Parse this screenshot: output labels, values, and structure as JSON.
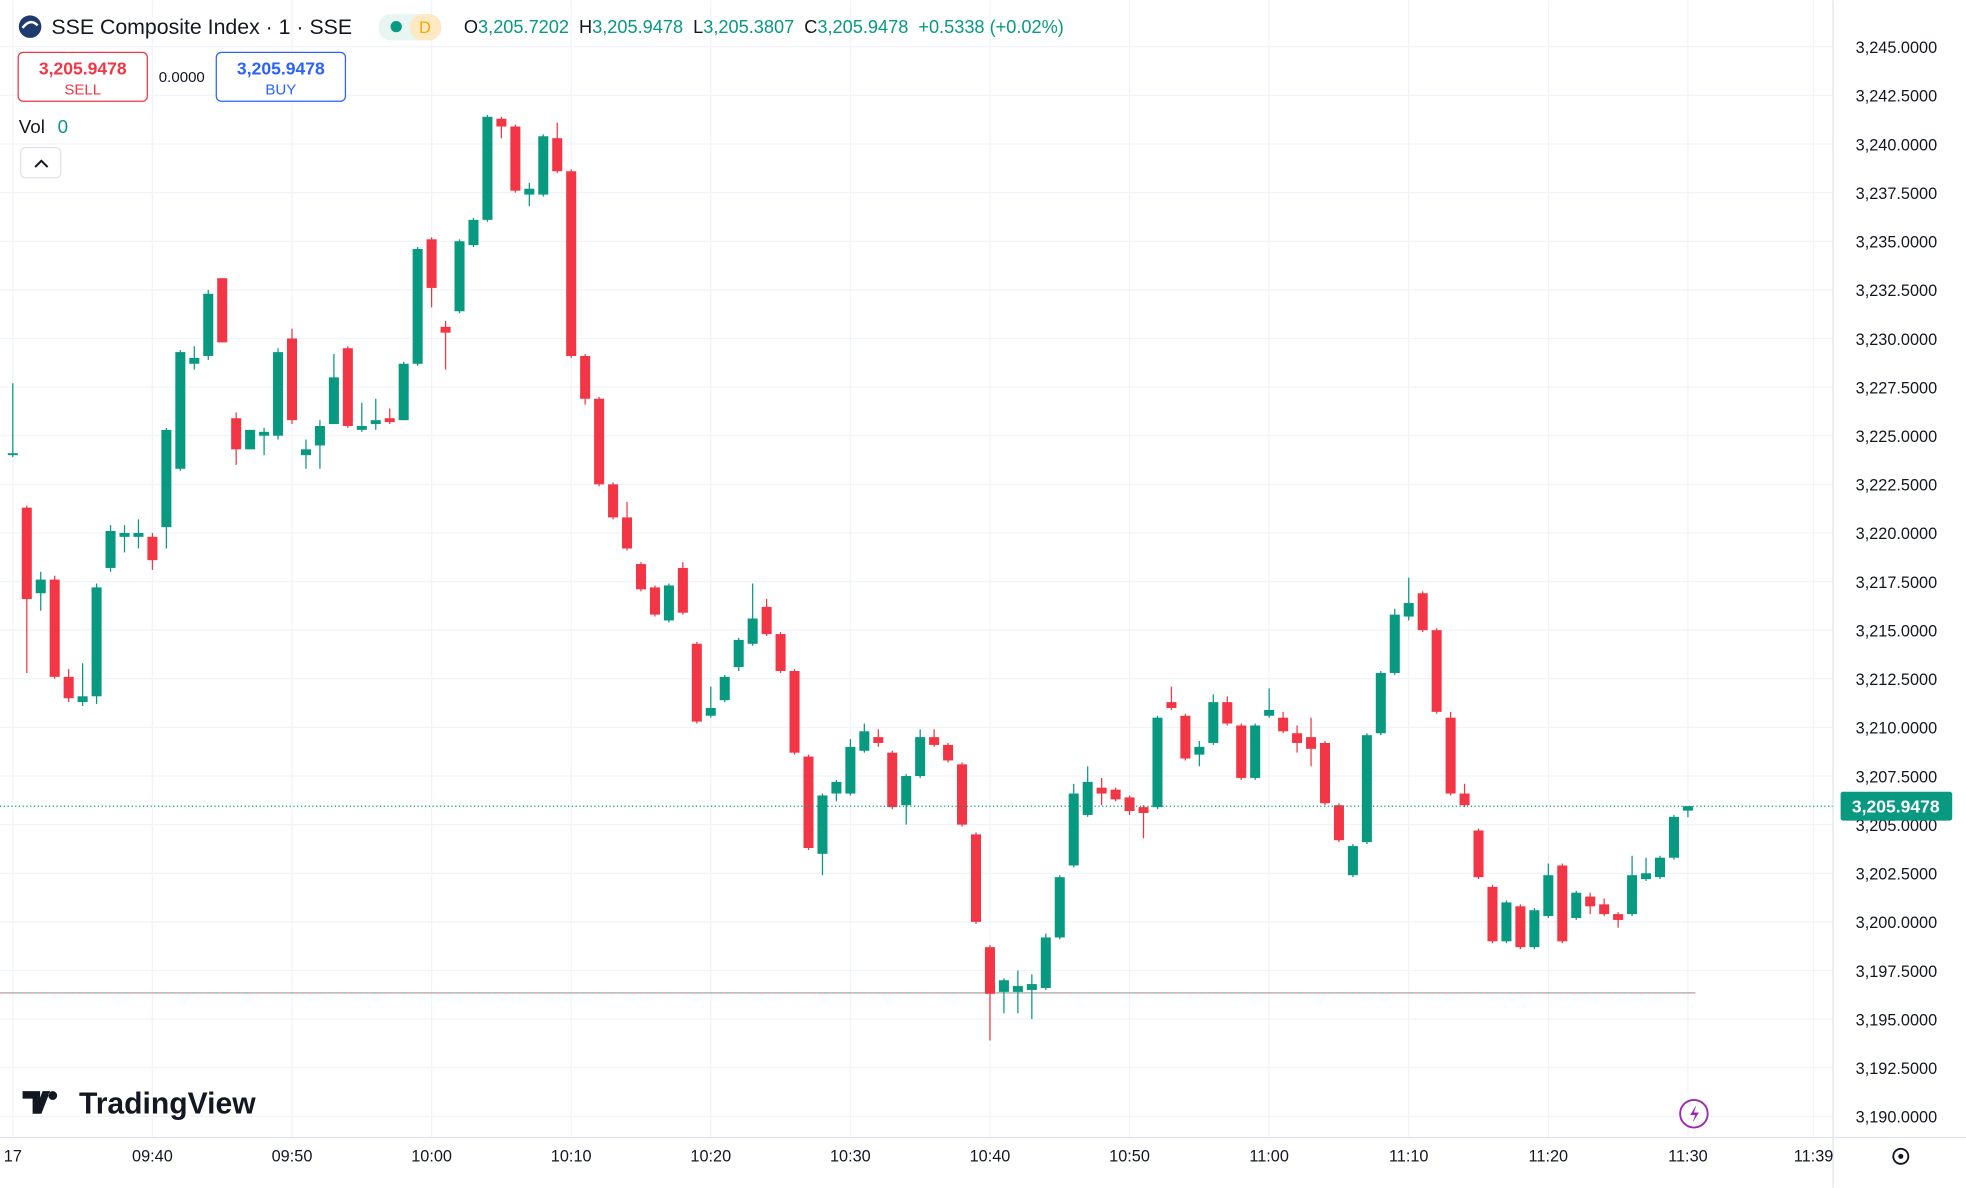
{
  "chart_data": {
    "type": "candlestick",
    "header": {
      "title": "SSE Composite Index · 1 · SSE",
      "badge": "D",
      "ohlc": [
        {
          "key": "O",
          "value": "3,205.7202"
        },
        {
          "key": "H",
          "value": "3,205.9478"
        },
        {
          "key": "L",
          "value": "3,205.3807"
        },
        {
          "key": "C",
          "value": "3,205.9478"
        }
      ],
      "change": "+0.5338 (+0.02%)"
    },
    "trade": {
      "sell_price": "3,205.9478",
      "sell": "SELL",
      "spread": "0.0000",
      "buy_price": "3,205.9478",
      "buy": "BUY"
    },
    "volume": {
      "label": "Vol",
      "value": "0"
    },
    "brand": "TradingView",
    "up_color": "#089981",
    "down_color": "#f23645",
    "price_label": {
      "value": 3205.9478,
      "label": "3,205.9478"
    },
    "reference_line": 3196.35,
    "xlim": [
      -0.47,
      130.4
    ],
    "xticks": [
      {
        "value": 0,
        "label": "17"
      },
      {
        "value": 10,
        "label": "09:40"
      },
      {
        "value": 20,
        "label": "09:50"
      },
      {
        "value": 30,
        "label": "10:00"
      },
      {
        "value": 40,
        "label": "10:10"
      },
      {
        "value": 50,
        "label": "10:20"
      },
      {
        "value": 60,
        "label": "10:30"
      },
      {
        "value": 70,
        "label": "10:40"
      },
      {
        "value": 80,
        "label": "10:50"
      },
      {
        "value": 90,
        "label": "11:00"
      },
      {
        "value": 100,
        "label": "11:10"
      },
      {
        "value": 110,
        "label": "11:20"
      },
      {
        "value": 120,
        "label": "11:30"
      },
      {
        "value": 129,
        "label": "11:39"
      }
    ],
    "ylim": [
      3188.91,
      3247.39
    ],
    "yticks": [
      {
        "value": 3245,
        "label": "3,245.0000"
      },
      {
        "value": 3242.5,
        "label": "3,242.5000"
      },
      {
        "value": 3240,
        "label": "3,240.0000"
      },
      {
        "value": 3237.5,
        "label": "3,237.5000"
      },
      {
        "value": 3235,
        "label": "3,235.0000"
      },
      {
        "value": 3232.5,
        "label": "3,232.5000"
      },
      {
        "value": 3230,
        "label": "3,230.0000"
      },
      {
        "value": 3227.5,
        "label": "3,227.5000"
      },
      {
        "value": 3225,
        "label": "3,225.0000"
      },
      {
        "value": 3222.5,
        "label": "3,222.5000"
      },
      {
        "value": 3220,
        "label": "3,220.0000"
      },
      {
        "value": 3217.5,
        "label": "3,217.5000"
      },
      {
        "value": 3215,
        "label": "3,215.0000"
      },
      {
        "value": 3212.5,
        "label": "3,212.5000"
      },
      {
        "value": 3210,
        "label": "3,210.0000"
      },
      {
        "value": 3207.5,
        "label": "3,207.5000"
      },
      {
        "value": 3205,
        "label": "3,205.0000"
      },
      {
        "value": 3202.5,
        "label": "3,202.5000"
      },
      {
        "value": 3200,
        "label": "3,200.0000"
      },
      {
        "value": 3197.5,
        "label": "3,197.5000"
      },
      {
        "value": 3195,
        "label": "3,195.0000"
      },
      {
        "value": 3192.5,
        "label": "3,192.5000"
      },
      {
        "value": 3190,
        "label": "3,190.0000"
      }
    ],
    "grid": true,
    "series": [
      {
        "open": [
          3224.0,
          3221.3,
          3216.9,
          3217.6,
          3212.6,
          3211.3,
          3211.6,
          3218.2,
          3219.8,
          3219.8,
          3219.8,
          3220.3,
          3223.3,
          3228.7,
          3229.1,
          3233.1,
          3225.9,
          3224.3,
          3225.0,
          3225.0,
          3230.0,
          3224.0,
          3224.5,
          3225.6,
          3229.5,
          3225.3,
          3225.6,
          3225.9,
          3225.8,
          3228.7,
          3235.1,
          3230.6,
          3231.4,
          3234.8,
          3236.1,
          3241.3,
          3240.9,
          3237.4,
          3237.4,
          3240.3,
          3238.6,
          3229.1,
          3226.9,
          3222.5,
          3220.8,
          3218.4,
          3217.2,
          3215.5,
          3218.2,
          3214.3,
          3210.6,
          3211.4,
          3213.1,
          3214.3,
          3216.2,
          3214.8,
          3212.9,
          3208.5,
          3203.5,
          3206.6,
          3206.6,
          3208.8,
          3209.5,
          3208.7,
          3206.0,
          3207.5,
          3209.5,
          3209.1,
          3208.1,
          3204.5,
          3198.7,
          3196.4,
          3196.4,
          3196.5,
          3196.6,
          3199.2,
          3202.9,
          3205.5,
          3206.9,
          3206.8,
          3206.4,
          3205.9,
          3205.9,
          3211.3,
          3210.6,
          3208.6,
          3209.2,
          3211.3,
          3210.1,
          3207.4,
          3210.6,
          3210.5,
          3209.7,
          3209.5,
          3209.2,
          3206.0,
          3202.4,
          3204.1,
          3209.7,
          3212.8,
          3215.7,
          3216.9,
          3215.0,
          3210.5,
          3206.6,
          3204.7,
          3201.8,
          3199.0,
          3200.8,
          3198.7,
          3200.3,
          3202.9,
          3200.2,
          3201.3,
          3200.9,
          3200.4,
          3200.4,
          3202.2,
          3202.3,
          3203.3,
          3205.7202
        ],
        "high": [
          3227.7,
          3221.4,
          3218.0,
          3217.8,
          3213.0,
          3213.3,
          3217.4,
          3220.4,
          3220.4,
          3220.7,
          3220.0,
          3225.4,
          3229.4,
          3229.6,
          3232.5,
          3233.1,
          3226.2,
          3225.3,
          3225.4,
          3229.5,
          3230.5,
          3224.8,
          3225.8,
          3229.2,
          3229.6,
          3226.7,
          3226.9,
          3226.4,
          3228.8,
          3234.7,
          3235.2,
          3230.9,
          3235.1,
          3236.2,
          3241.5,
          3241.4,
          3241.0,
          3238.0,
          3240.5,
          3241.1,
          3238.7,
          3229.2,
          3227.0,
          3222.6,
          3221.6,
          3218.5,
          3217.3,
          3217.4,
          3218.5,
          3214.4,
          3212.1,
          3212.7,
          3214.6,
          3217.4,
          3216.6,
          3214.9,
          3213.0,
          3208.6,
          3206.6,
          3207.3,
          3209.4,
          3210.2,
          3209.9,
          3208.8,
          3207.6,
          3209.9,
          3209.9,
          3209.2,
          3208.2,
          3204.6,
          3198.8,
          3197.1,
          3197.5,
          3197.3,
          3199.4,
          3202.4,
          3207.1,
          3208.0,
          3207.4,
          3206.9,
          3206.5,
          3206.0,
          3210.6,
          3212.1,
          3210.7,
          3209.3,
          3211.7,
          3211.6,
          3210.2,
          3210.2,
          3212.0,
          3210.8,
          3210.1,
          3210.5,
          3209.3,
          3206.1,
          3204.0,
          3209.7,
          3212.9,
          3216.1,
          3217.7,
          3217.0,
          3215.1,
          3210.8,
          3207.1,
          3204.8,
          3201.9,
          3201.1,
          3200.9,
          3200.7,
          3203.0,
          3203.0,
          3201.6,
          3201.5,
          3201.2,
          3200.5,
          3203.4,
          3203.3,
          3203.4,
          3205.5,
          3205.9478
        ],
        "low": [
          3223.9,
          3212.8,
          3216.0,
          3212.5,
          3211.3,
          3211.1,
          3211.2,
          3218.0,
          3219.0,
          3219.2,
          3218.1,
          3219.2,
          3223.2,
          3228.4,
          3228.9,
          3229.8,
          3223.5,
          3224.3,
          3224.0,
          3224.8,
          3225.6,
          3223.3,
          3223.3,
          3225.6,
          3225.4,
          3225.2,
          3225.3,
          3225.6,
          3225.8,
          3228.6,
          3231.6,
          3228.4,
          3231.3,
          3234.7,
          3236.0,
          3240.3,
          3237.5,
          3236.8,
          3237.3,
          3238.5,
          3229.0,
          3226.6,
          3222.4,
          3220.7,
          3219.1,
          3217.0,
          3215.7,
          3215.4,
          3215.8,
          3210.2,
          3210.5,
          3211.3,
          3212.9,
          3214.2,
          3214.7,
          3212.8,
          3208.6,
          3203.7,
          3202.4,
          3206.2,
          3206.5,
          3208.7,
          3209.0,
          3205.8,
          3205.0,
          3207.4,
          3209.0,
          3208.2,
          3204.9,
          3199.9,
          3193.9,
          3195.3,
          3195.3,
          3195.0,
          3196.5,
          3199.1,
          3202.8,
          3205.4,
          3206.0,
          3206.2,
          3205.5,
          3204.3,
          3205.8,
          3210.9,
          3208.3,
          3208.0,
          3209.1,
          3210.1,
          3207.3,
          3207.3,
          3210.5,
          3209.7,
          3208.7,
          3208.0,
          3206.0,
          3204.1,
          3202.3,
          3204.0,
          3209.6,
          3212.7,
          3215.5,
          3214.9,
          3210.7,
          3206.5,
          3205.9,
          3202.2,
          3198.9,
          3198.9,
          3198.6,
          3198.6,
          3200.2,
          3198.9,
          3200.1,
          3200.4,
          3200.3,
          3199.7,
          3200.3,
          3202.1,
          3202.2,
          3203.2,
          3205.3807
        ],
        "close": [
          3224.1,
          3216.6,
          3217.6,
          3212.6,
          3211.5,
          3211.6,
          3217.2,
          3220.1,
          3220.0,
          3220.0,
          3218.6,
          3225.3,
          3229.3,
          3229.0,
          3232.3,
          3229.8,
          3224.3,
          3225.3,
          3225.2,
          3229.3,
          3225.8,
          3224.3,
          3225.5,
          3228.0,
          3225.5,
          3225.5,
          3225.8,
          3225.7,
          3228.7,
          3234.6,
          3232.6,
          3230.3,
          3235.0,
          3236.1,
          3241.4,
          3240.9,
          3237.6,
          3237.7,
          3240.4,
          3238.6,
          3229.1,
          3226.9,
          3222.5,
          3220.8,
          3219.2,
          3217.1,
          3215.8,
          3217.3,
          3215.9,
          3210.3,
          3211.0,
          3212.6,
          3214.5,
          3215.6,
          3214.8,
          3212.9,
          3208.7,
          3203.8,
          3206.5,
          3207.2,
          3209.0,
          3209.8,
          3209.2,
          3205.9,
          3207.5,
          3209.5,
          3209.1,
          3208.3,
          3205.0,
          3200.0,
          3196.3,
          3197.0,
          3196.7,
          3196.8,
          3199.2,
          3202.3,
          3206.6,
          3207.2,
          3206.6,
          3206.3,
          3205.7,
          3205.6,
          3210.5,
          3211.0,
          3208.4,
          3209.0,
          3211.3,
          3210.2,
          3207.4,
          3210.1,
          3210.9,
          3209.8,
          3209.2,
          3208.9,
          3206.1,
          3204.2,
          3203.9,
          3209.6,
          3212.8,
          3215.8,
          3216.4,
          3215.0,
          3210.8,
          3206.6,
          3206.0,
          3202.3,
          3199.0,
          3201.0,
          3198.7,
          3200.6,
          3202.4,
          3199.0,
          3201.5,
          3200.8,
          3200.4,
          3200.1,
          3202.4,
          3202.5,
          3203.3,
          3205.4,
          3205.9478
        ]
      }
    ]
  }
}
